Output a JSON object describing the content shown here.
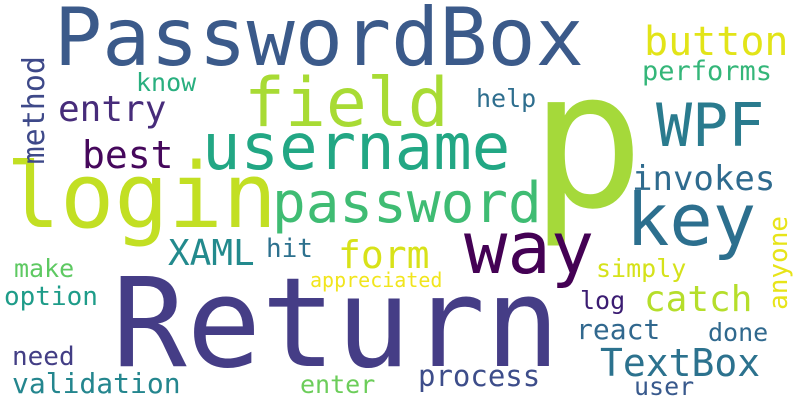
{
  "words": {
    "passwordbox": {
      "text": "PasswordBox",
      "color": "#3b5a8a"
    },
    "p": {
      "text": "p",
      "color": "#a5d93a"
    },
    "return": {
      "text": "Return",
      "color": "#453d86"
    },
    "login": {
      "text": "login",
      "color": "#c2df23"
    },
    "username": {
      "text": "username",
      "color": "#22a784"
    },
    "field": {
      "text": "field",
      "color": "#a8db34"
    },
    "password": {
      "text": "password",
      "color": "#3fbc73"
    },
    "way": {
      "text": "way",
      "color": "#440154"
    },
    "key": {
      "text": "key",
      "color": "#2c6f8e"
    },
    "wpf": {
      "text": "WPF",
      "color": "#2a7b8e"
    },
    "button": {
      "text": "button",
      "color": "#e2e418"
    },
    "entry": {
      "text": "entry",
      "color": "#472c7a"
    },
    "best": {
      "text": "best",
      "color": "#46085c"
    },
    "form": {
      "text": "form",
      "color": "#d8e219"
    },
    "xaml": {
      "text": "XAML",
      "color": "#238a8d"
    },
    "invokes": {
      "text": "invokes",
      "color": "#2f6b8e"
    },
    "catch": {
      "text": "catch",
      "color": "#b5de2b"
    },
    "textbox": {
      "text": "TextBox",
      "color": "#2c728e"
    },
    "performs": {
      "text": "performs",
      "color": "#34b679"
    },
    "method": {
      "text": "method",
      "color": "#3e4989"
    },
    "know": {
      "text": "know",
      "color": "#29af7f"
    },
    "help": {
      "text": "help",
      "color": "#2e6e8e"
    },
    "hit": {
      "text": "hit",
      "color": "#2d718e"
    },
    "make": {
      "text": "make",
      "color": "#5ec962"
    },
    "option": {
      "text": "option",
      "color": "#1e9c89"
    },
    "appreciated": {
      "text": "appreciated",
      "color": "#f1e51d"
    },
    "simply": {
      "text": "simply",
      "color": "#d5e21a"
    },
    "anyone": {
      "text": "anyone",
      "color": "#e7e419"
    },
    "log": {
      "text": "log",
      "color": "#3b1c72"
    },
    "react": {
      "text": "react",
      "color": "#31688e"
    },
    "done": {
      "text": "done",
      "color": "#30698e"
    },
    "need": {
      "text": "need",
      "color": "#433e85"
    },
    "validation": {
      "text": "validation",
      "color": "#24868e"
    },
    "enter": {
      "text": "enter",
      "color": "#6ccd5a"
    },
    "process": {
      "text": "process",
      "color": "#3d4d8a"
    },
    "user": {
      "text": "user",
      "color": "#38598c"
    }
  }
}
